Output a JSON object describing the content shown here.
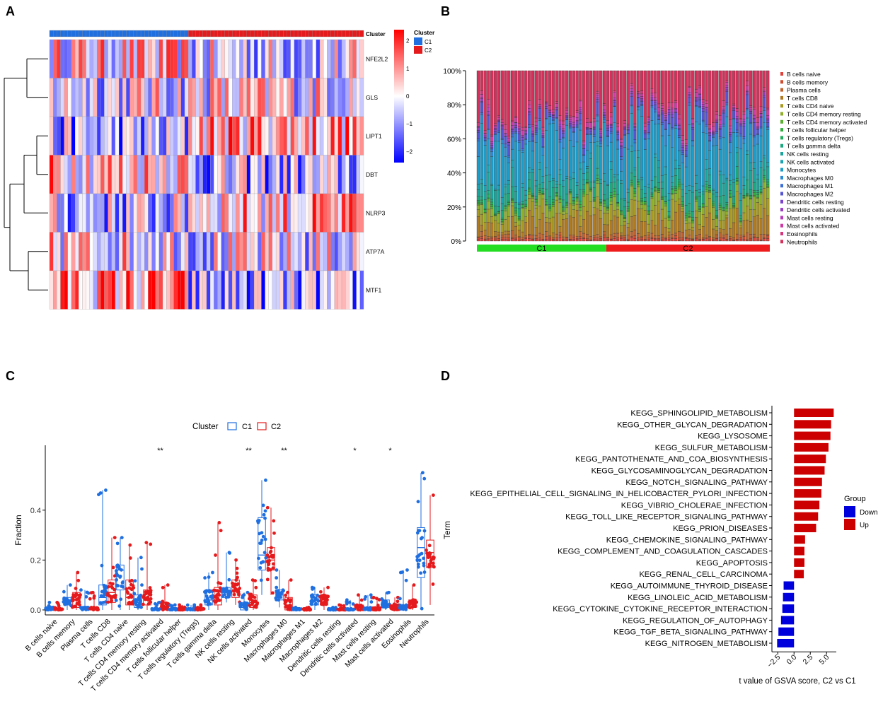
{
  "panels": {
    "A": "A",
    "B": "B",
    "C": "C",
    "D": "D"
  },
  "colors": {
    "C1": "#1f6fe0",
    "C2": "#e41a1c",
    "heat_low": "#0000ff",
    "heat_mid": "#ffffff",
    "heat_high": "#ff0000",
    "up": "#cc0000",
    "down": "#0000dd",
    "c_green": "#22dd22",
    "c_red": "#ee1c1c"
  },
  "chart_data": [
    {
      "id": "A",
      "type": "heatmap",
      "title": "",
      "genes": [
        "NFE2L2",
        "GLS",
        "LIPT1",
        "DBT",
        "NLRP3",
        "ATP7A",
        "MTF1"
      ],
      "n_samples": {
        "C1": 38,
        "C2": 48
      },
      "annotation_label": "Cluster",
      "legend_title": "Cluster",
      "legend_items": [
        "C1",
        "C2"
      ],
      "colorbar_ticks": [
        "2",
        "1",
        "0",
        "−1",
        "−2"
      ],
      "colorbar_values": [
        2,
        1,
        0,
        -1,
        -2
      ],
      "value_range": [
        -2.4,
        2.4
      ]
    },
    {
      "id": "B",
      "type": "bar",
      "subtype": "stacked-percent",
      "y_ticks": [
        "0%",
        "20%",
        "40%",
        "60%",
        "80%",
        "100%"
      ],
      "y_tick_values": [
        0,
        20,
        40,
        60,
        80,
        100
      ],
      "groups": [
        "C1",
        "C2"
      ],
      "n_samples": {
        "C1": 38,
        "C2": 48
      },
      "legend": [
        {
          "name": "B cells naive",
          "color": "#e2413a",
          "mean": 1
        },
        {
          "name": "B cells memory",
          "color": "#d04a2c",
          "mean": 1
        },
        {
          "name": "Plasma cells",
          "color": "#c0612b",
          "mean": 2
        },
        {
          "name": "T cells CD8",
          "color": "#b07a20",
          "mean": 9
        },
        {
          "name": "T cells CD4 naive",
          "color": "#a89a20",
          "mean": 6
        },
        {
          "name": "T cells CD4 memory resting",
          "color": "#8fae2a",
          "mean": 5
        },
        {
          "name": "T cells CD4 memory activated",
          "color": "#5ab030",
          "mean": 1
        },
        {
          "name": "T cells follicular helper",
          "color": "#2fae3c",
          "mean": 1
        },
        {
          "name": "T cells regulatory (Tregs)",
          "color": "#1fae5c",
          "mean": 1
        },
        {
          "name": "T cells gamma delta",
          "color": "#1aa97e",
          "mean": 4
        },
        {
          "name": "NK cells resting",
          "color": "#1aa59c",
          "mean": 8
        },
        {
          "name": "NK cells activated",
          "color": "#18a3b4",
          "mean": 3
        },
        {
          "name": "Monocytes",
          "color": "#1c9cc8",
          "mean": 24
        },
        {
          "name": "Macrophages M0",
          "color": "#2b8ad4",
          "mean": 6
        },
        {
          "name": "Macrophages M1",
          "color": "#3a6fd8",
          "mean": 1
        },
        {
          "name": "Macrophages M2",
          "color": "#5555d4",
          "mean": 4
        },
        {
          "name": "Dendritic cells resting",
          "color": "#7a44cc",
          "mean": 1
        },
        {
          "name": "Dendritic cells activated",
          "color": "#9a3cc4",
          "mean": 1
        },
        {
          "name": "Mast cells resting",
          "color": "#b83abc",
          "mean": 1
        },
        {
          "name": "Mast cells activated",
          "color": "#cf3aa4",
          "mean": 2
        },
        {
          "name": "Eosinophils",
          "color": "#d8367c",
          "mean": 2
        },
        {
          "name": "Neutrophils",
          "color": "#d4305a",
          "mean": 25
        }
      ]
    },
    {
      "id": "C",
      "type": "scatter",
      "subtype": "boxplot-with-points",
      "legend_title": "Cluster",
      "series": [
        "C1",
        "C2"
      ],
      "ylabel": "Fraction",
      "y_ticks": [
        "0.0",
        "0.2",
        "0.4"
      ],
      "y_tick_values": [
        0,
        0.2,
        0.4
      ],
      "ylim": [
        -0.02,
        0.66
      ],
      "categories": [
        {
          "name": "B cells naive",
          "sig": "",
          "C1": {
            "q1": 0,
            "med": 0,
            "q3": 0.01,
            "lo": 0,
            "hi": 0.03
          },
          "C2": {
            "q1": 0,
            "med": 0,
            "q3": 0.005,
            "lo": 0,
            "hi": 0.03
          }
        },
        {
          "name": "B cells memory",
          "sig": "",
          "C1": {
            "q1": 0.02,
            "med": 0.03,
            "q3": 0.05,
            "lo": 0,
            "hi": 0.1
          },
          "C2": {
            "q1": 0.01,
            "med": 0.04,
            "q3": 0.07,
            "lo": 0,
            "hi": 0.15
          }
        },
        {
          "name": "Plasma cells",
          "sig": "",
          "C1": {
            "q1": 0,
            "med": 0,
            "q3": 0.01,
            "lo": 0,
            "hi": 0.08
          },
          "C2": {
            "q1": 0,
            "med": 0,
            "q3": 0.01,
            "lo": 0,
            "hi": 0.07
          }
        },
        {
          "name": "T cells CD8",
          "sig": "",
          "C1": {
            "q1": 0.02,
            "med": 0.05,
            "q3": 0.1,
            "lo": 0,
            "hi": 0.48
          },
          "C2": {
            "q1": 0.03,
            "med": 0.07,
            "q3": 0.12,
            "lo": 0,
            "hi": 0.29
          }
        },
        {
          "name": "T cells CD4 naive",
          "sig": "",
          "C1": {
            "q1": 0.08,
            "med": 0.16,
            "q3": 0.18,
            "lo": 0,
            "hi": 0.29
          },
          "C2": {
            "q1": 0.02,
            "med": 0.05,
            "q3": 0.12,
            "lo": 0,
            "hi": 0.26
          }
        },
        {
          "name": "T cells CD4 memory resting",
          "sig": "",
          "C1": {
            "q1": 0.01,
            "med": 0.03,
            "q3": 0.06,
            "lo": 0,
            "hi": 0.21
          },
          "C2": {
            "q1": 0.02,
            "med": 0.04,
            "q3": 0.08,
            "lo": 0,
            "hi": 0.27
          }
        },
        {
          "name": "T cells CD4 memory activated",
          "sig": "**",
          "C1": {
            "q1": 0,
            "med": 0,
            "q3": 0.005,
            "lo": 0,
            "hi": 0.03
          },
          "C2": {
            "q1": 0,
            "med": 0.01,
            "q3": 0.03,
            "lo": 0,
            "hi": 0.1
          }
        },
        {
          "name": "T cells follicular helper",
          "sig": "",
          "C1": {
            "q1": 0,
            "med": 0,
            "q3": 0.005,
            "lo": 0,
            "hi": 0.02
          },
          "C2": {
            "q1": 0,
            "med": 0,
            "q3": 0.005,
            "lo": 0,
            "hi": 0.02
          }
        },
        {
          "name": "T cells regulatory (Tregs)",
          "sig": "",
          "C1": {
            "q1": 0,
            "med": 0,
            "q3": 0.005,
            "lo": 0,
            "hi": 0.02
          },
          "C2": {
            "q1": 0,
            "med": 0,
            "q3": 0.005,
            "lo": 0,
            "hi": 0.02
          }
        },
        {
          "name": "T cells gamma delta",
          "sig": "",
          "C1": {
            "q1": 0.02,
            "med": 0.04,
            "q3": 0.08,
            "lo": 0,
            "hi": 0.15
          },
          "C2": {
            "q1": 0.02,
            "med": 0.04,
            "q3": 0.09,
            "lo": 0,
            "hi": 0.35
          }
        },
        {
          "name": "NK cells resting",
          "sig": "",
          "C1": {
            "q1": 0.05,
            "med": 0.07,
            "q3": 0.09,
            "lo": 0.03,
            "hi": 0.23
          },
          "C2": {
            "q1": 0.05,
            "med": 0.08,
            "q3": 0.12,
            "lo": 0.02,
            "hi": 0.2
          }
        },
        {
          "name": "NK cells activated",
          "sig": "**",
          "C1": {
            "q1": 0,
            "med": 0.01,
            "q3": 0.03,
            "lo": 0,
            "hi": 0.07
          },
          "C2": {
            "q1": 0.01,
            "med": 0.03,
            "q3": 0.06,
            "lo": 0,
            "hi": 0.12
          }
        },
        {
          "name": "Monocytes",
          "sig": "",
          "C1": {
            "q1": 0.16,
            "med": 0.22,
            "q3": 0.37,
            "lo": 0.06,
            "hi": 0.52
          },
          "C2": {
            "q1": 0.16,
            "med": 0.2,
            "q3": 0.25,
            "lo": 0.06,
            "hi": 0.41
          }
        },
        {
          "name": "Macrophages M0",
          "sig": "**",
          "C1": {
            "q1": 0.04,
            "med": 0.06,
            "q3": 0.08,
            "lo": 0.01,
            "hi": 0.16
          },
          "C2": {
            "q1": 0,
            "med": 0.02,
            "q3": 0.05,
            "lo": 0,
            "hi": 0.12
          }
        },
        {
          "name": "Macrophages M1",
          "sig": "",
          "C1": {
            "q1": 0,
            "med": 0,
            "q3": 0.005,
            "lo": 0,
            "hi": 0.01
          },
          "C2": {
            "q1": 0,
            "med": 0,
            "q3": 0.005,
            "lo": 0,
            "hi": 0.01
          }
        },
        {
          "name": "Macrophages M2",
          "sig": "",
          "C1": {
            "q1": 0.02,
            "med": 0.04,
            "q3": 0.06,
            "lo": 0,
            "hi": 0.09
          },
          "C2": {
            "q1": 0.02,
            "med": 0.04,
            "q3": 0.06,
            "lo": 0,
            "hi": 0.09
          }
        },
        {
          "name": "Dendritic cells resting",
          "sig": "",
          "C1": {
            "q1": 0,
            "med": 0,
            "q3": 0.005,
            "lo": 0,
            "hi": 0.01
          },
          "C2": {
            "q1": 0,
            "med": 0,
            "q3": 0.005,
            "lo": 0,
            "hi": 0.02
          }
        },
        {
          "name": "Dendritic cells activated",
          "sig": "*",
          "C1": {
            "q1": 0,
            "med": 0,
            "q3": 0.005,
            "lo": 0,
            "hi": 0.04
          },
          "C2": {
            "q1": 0,
            "med": 0.01,
            "q3": 0.02,
            "lo": 0,
            "hi": 0.06
          }
        },
        {
          "name": "Mast cells resting",
          "sig": "",
          "C1": {
            "q1": 0,
            "med": 0,
            "q3": 0.01,
            "lo": 0,
            "hi": 0.06
          },
          "C2": {
            "q1": 0,
            "med": 0,
            "q3": 0.01,
            "lo": 0,
            "hi": 0.05
          }
        },
        {
          "name": "Mast cells activated",
          "sig": "*",
          "C1": {
            "q1": 0.01,
            "med": 0.02,
            "q3": 0.04,
            "lo": 0,
            "hi": 0.07
          },
          "C2": {
            "q1": 0,
            "med": 0.01,
            "q3": 0.02,
            "lo": 0,
            "hi": 0.05
          }
        },
        {
          "name": "Eosinophils",
          "sig": "",
          "C1": {
            "q1": 0,
            "med": 0.01,
            "q3": 0.02,
            "lo": 0,
            "hi": 0.16
          },
          "C2": {
            "q1": 0.01,
            "med": 0.02,
            "q3": 0.04,
            "lo": 0,
            "hi": 0.1
          }
        },
        {
          "name": "Neutrophils",
          "sig": "",
          "C1": {
            "q1": 0.13,
            "med": 0.25,
            "q3": 0.33,
            "lo": 0,
            "hi": 0.55
          },
          "C2": {
            "q1": 0.17,
            "med": 0.23,
            "q3": 0.28,
            "lo": 0.02,
            "hi": 0.46
          }
        }
      ]
    },
    {
      "id": "D",
      "type": "bar",
      "subtype": "horizontal-diverging",
      "xlabel": "t value of GSVA score, C2 vs C1",
      "ylabel": "Term",
      "x_ticks": [
        "−2.5",
        "0.0",
        "2.5",
        "5.0"
      ],
      "x_tick_values": [
        -2.5,
        0,
        2.5,
        5
      ],
      "xlim": [
        -3.4,
        6.5
      ],
      "legend_title": "Group",
      "legend_items": [
        "Down",
        "Up"
      ],
      "terms": [
        {
          "name": "KEGG_SPHINGOLIPID_METABOLISM",
          "value": 6.1,
          "group": "Up"
        },
        {
          "name": "KEGG_OTHER_GLYCAN_DEGRADATION",
          "value": 5.7,
          "group": "Up"
        },
        {
          "name": "KEGG_LYSOSOME",
          "value": 5.6,
          "group": "Up"
        },
        {
          "name": "KEGG_SULFUR_METABOLISM",
          "value": 5.3,
          "group": "Up"
        },
        {
          "name": "KEGG_PANTOTHENATE_AND_COA_BIOSYNTHESIS",
          "value": 4.9,
          "group": "Up"
        },
        {
          "name": "KEGG_GLYCOSAMINOGLYCAN_DEGRADATION",
          "value": 4.7,
          "group": "Up"
        },
        {
          "name": "KEGG_NOTCH_SIGNALING_PATHWAY",
          "value": 4.3,
          "group": "Up"
        },
        {
          "name": "KEGG_EPITHELIAL_CELL_SIGNALING_IN_HELICOBACTER_PYLORI_INFECTION",
          "value": 4.2,
          "group": "Up"
        },
        {
          "name": "KEGG_VIBRIO_CHOLERAE_INFECTION",
          "value": 3.9,
          "group": "Up"
        },
        {
          "name": "KEGG_TOLL_LIKE_RECEPTOR_SIGNALING_PATHWAY",
          "value": 3.7,
          "group": "Up"
        },
        {
          "name": "KEGG_PRION_DISEASES",
          "value": 3.4,
          "group": "Up"
        },
        {
          "name": "KEGG_CHEMOKINE_SIGNALING_PATHWAY",
          "value": 1.7,
          "group": "Up"
        },
        {
          "name": "KEGG_COMPLEMENT_AND_COAGULATION_CASCADES",
          "value": 1.6,
          "group": "Up"
        },
        {
          "name": "KEGG_APOPTOSIS",
          "value": 1.6,
          "group": "Up"
        },
        {
          "name": "KEGG_RENAL_CELL_CARCINOMA",
          "value": 1.5,
          "group": "Up"
        },
        {
          "name": "KEGG_AUTOIMMUNE_THYROID_DISEASE",
          "value": -1.6,
          "group": "Down"
        },
        {
          "name": "KEGG_LINOLEIC_ACID_METABOLISM",
          "value": -1.7,
          "group": "Down"
        },
        {
          "name": "KEGG_CYTOKINE_CYTOKINE_RECEPTOR_INTERACTION",
          "value": -1.8,
          "group": "Down"
        },
        {
          "name": "KEGG_REGULATION_OF_AUTOPHAGY",
          "value": -2.0,
          "group": "Down"
        },
        {
          "name": "KEGG_TGF_BETA_SIGNALING_PATHWAY",
          "value": -2.4,
          "group": "Down"
        },
        {
          "name": "KEGG_NITROGEN_METABOLISM",
          "value": -2.6,
          "group": "Down"
        }
      ]
    }
  ]
}
